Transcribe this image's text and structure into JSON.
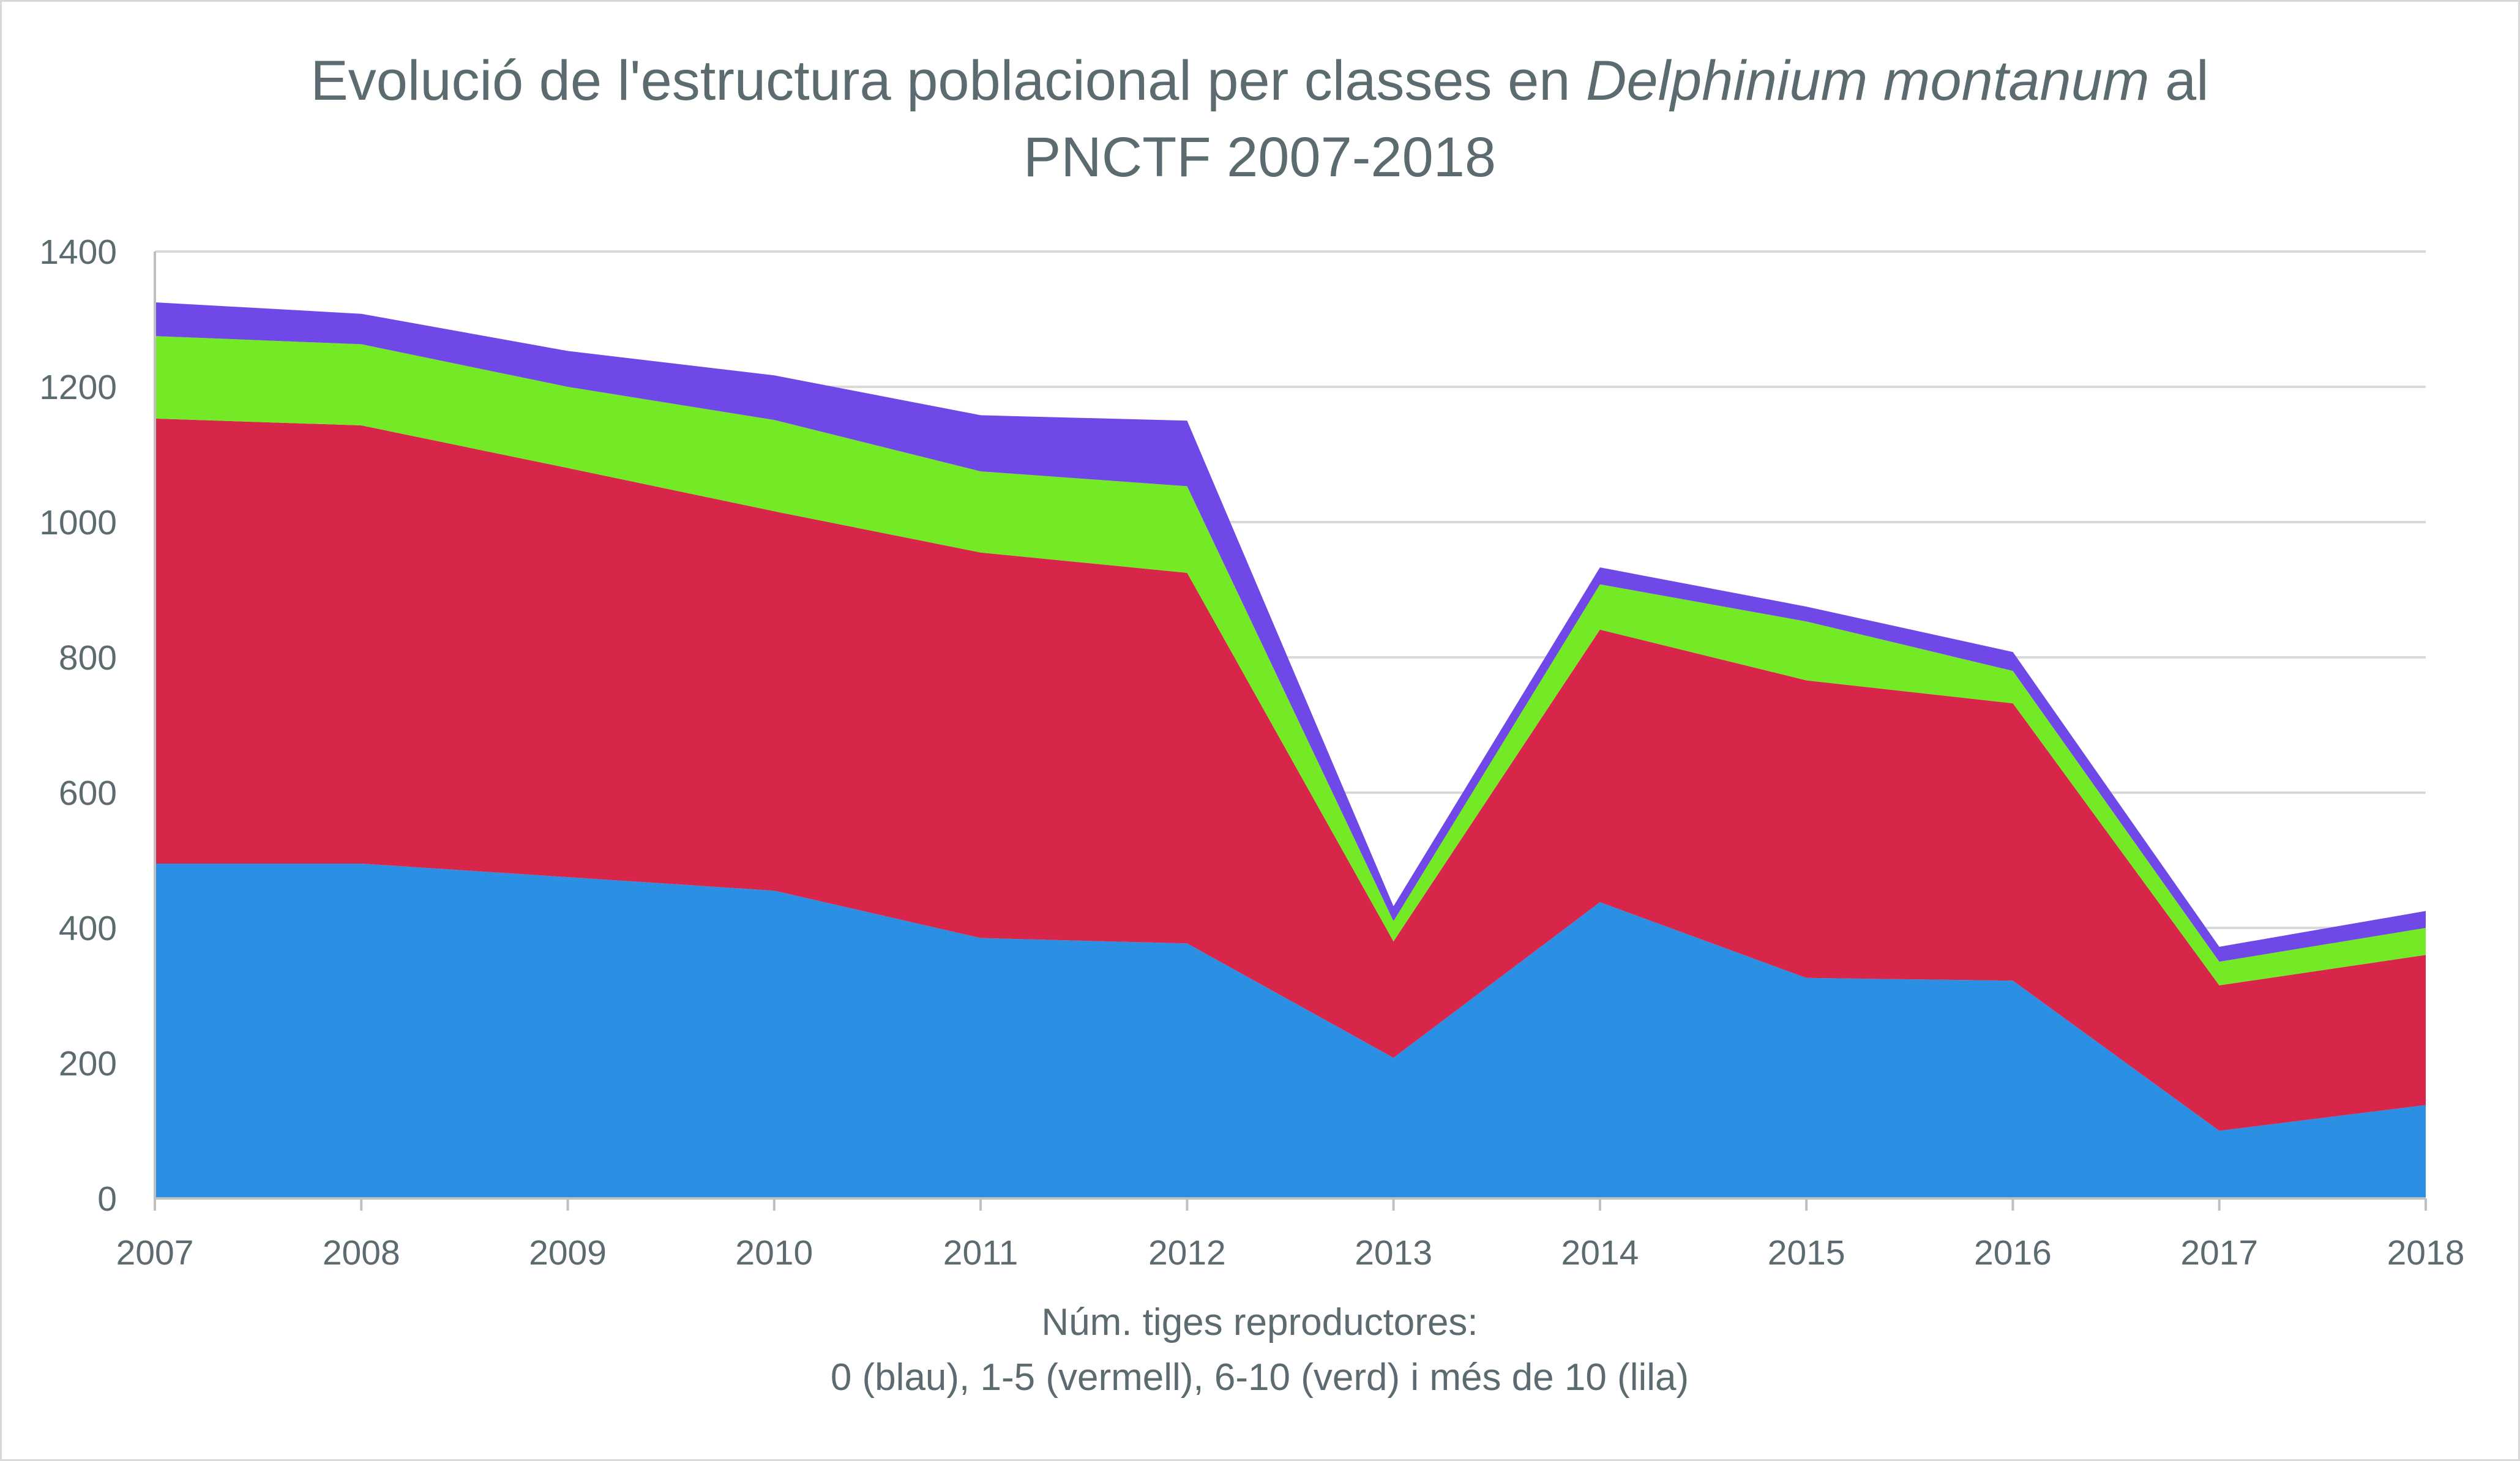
{
  "chart_data": {
    "type": "area",
    "stacked": true,
    "title_parts": [
      {
        "text": "Evolució de l'estructura poblacional per classes en ",
        "italic": false
      },
      {
        "text": "Delphinium montanum",
        "italic": true
      },
      {
        "text": " al",
        "italic": false
      }
    ],
    "title_line2": "PNCTF 2007-2018",
    "xlabel_line1": "Núm. tiges reproductores:",
    "xlabel_line2": "0 (blau), 1-5 (vermell), 6-10 (verd) i més de 10 (lila)",
    "ylabel": "",
    "x": [
      "2007",
      "2008",
      "2009",
      "2010",
      "2011",
      "2012",
      "2013",
      "2014",
      "2015",
      "2016",
      "2017",
      "2018"
    ],
    "ylim": [
      0,
      1400
    ],
    "yticks": [
      0,
      200,
      400,
      600,
      800,
      1000,
      1200,
      1400
    ],
    "grid": true,
    "legend": "none",
    "series": [
      {
        "color": "#2b8fe3",
        "values": [
          495,
          495,
          475,
          455,
          385,
          377,
          208,
          438,
          326,
          322,
          100,
          138
        ]
      },
      {
        "color": "#d8254a",
        "values": [
          658,
          648,
          605,
          561,
          570,
          548,
          172,
          403,
          440,
          410,
          215,
          222
        ]
      },
      {
        "color": "#74ea26",
        "values": [
          122,
          120,
          120,
          135,
          120,
          128,
          30,
          67,
          87,
          48,
          35,
          40
        ]
      },
      {
        "color": "#7048e8",
        "values": [
          50,
          45,
          53,
          66,
          83,
          97,
          22,
          25,
          22,
          28,
          22,
          25
        ]
      }
    ]
  }
}
